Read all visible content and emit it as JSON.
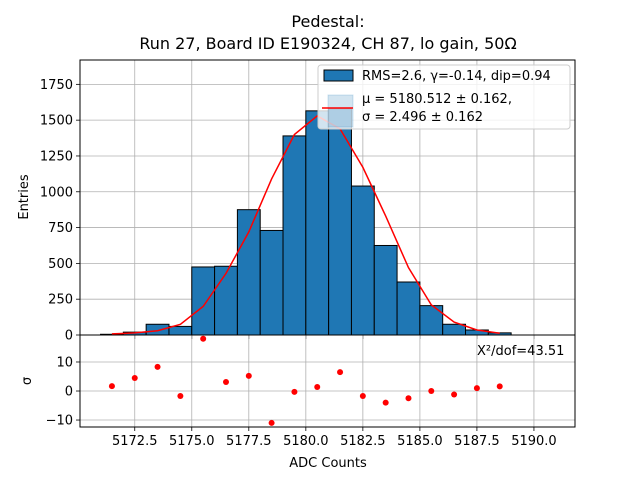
{
  "chart_data": [
    {
      "type": "bar",
      "panel": "main",
      "title_line1": "Pedestal:",
      "title_line2": "Run 27, Board ID E190324, CH 87, lo gain, 50Ω",
      "xlabel": "",
      "ylabel": "Entries",
      "xlim": [
        5170.1,
        5191.8
      ],
      "ylim": [
        0,
        1920
      ],
      "yticks": [
        0,
        250,
        500,
        750,
        1000,
        1250,
        1500,
        1750
      ],
      "ytick_labels": [
        "0",
        "250",
        "500",
        "750",
        "1000",
        "1250",
        "1500",
        "1750"
      ],
      "xticks": [
        5172.5,
        5175.0,
        5177.5,
        5180.0,
        5182.5,
        5185.0,
        5187.5,
        5190.0
      ],
      "grid": true,
      "bin_edges": [
        5171,
        5172,
        5173,
        5174,
        5175,
        5176,
        5177,
        5178,
        5179,
        5180,
        5181,
        5182,
        5183,
        5184,
        5185,
        5186,
        5187,
        5188,
        5189
      ],
      "values": [
        5,
        20,
        75,
        60,
        475,
        480,
        875,
        730,
        1390,
        1565,
        1580,
        1040,
        625,
        370,
        205,
        75,
        35,
        15
      ],
      "bar_color": "#1f77b4",
      "fit": {
        "x": [
          5171.5,
          5172.5,
          5173.5,
          5174.5,
          5175.5,
          5176.5,
          5177.5,
          5178.5,
          5179.5,
          5180.5,
          5181.5,
          5182.5,
          5183.5,
          5184.5,
          5185.5,
          5186.5,
          5187.5,
          5188.5
        ],
        "y": [
          8,
          15,
          30,
          75,
          200,
          430,
          720,
          1090,
          1400,
          1530,
          1440,
          1170,
          830,
          470,
          210,
          90,
          35,
          12
        ],
        "color": "#ff0000"
      },
      "legend": {
        "placement": "top-right",
        "entries": [
          {
            "label": "RMS=2.6, γ=-0.14, dip=0.94",
            "kind": "patch"
          },
          {
            "label_line1": "μ = 5180.512 ± 0.162,",
            "label_line2": "σ = 2.496 ± 0.162",
            "kind": "line"
          }
        ]
      }
    },
    {
      "type": "scatter",
      "panel": "residuals",
      "xlabel": "ADC Counts",
      "ylabel": "σ",
      "xlim": [
        5170.1,
        5191.8
      ],
      "ylim": [
        -12.4,
        19.3
      ],
      "yticks": [
        -10,
        0,
        10
      ],
      "ytick_labels": [
        "−10",
        "0",
        "10"
      ],
      "xticks": [
        5172.5,
        5175.0,
        5177.5,
        5180.0,
        5182.5,
        5185.0,
        5187.5,
        5190.0
      ],
      "xtick_labels": [
        "5172.5",
        "5175.0",
        "5177.5",
        "5180.0",
        "5182.5",
        "5185.0",
        "5187.5",
        "5190.0"
      ],
      "grid": true,
      "x": [
        5171.5,
        5172.5,
        5173.5,
        5174.5,
        5175.5,
        5176.5,
        5177.5,
        5178.5,
        5179.5,
        5180.5,
        5181.5,
        5182.5,
        5183.5,
        5184.5,
        5185.5,
        5186.5,
        5187.5,
        5188.5
      ],
      "y": [
        1.7,
        4.5,
        8.3,
        -1.7,
        18.0,
        3.1,
        5.2,
        -11.0,
        -0.3,
        1.4,
        6.5,
        -1.7,
        -4.0,
        -2.5,
        0.0,
        -1.2,
        1.0,
        1.6
      ],
      "point_color": "#ff0000",
      "annotation": "X²/dof=43.51"
    }
  ]
}
